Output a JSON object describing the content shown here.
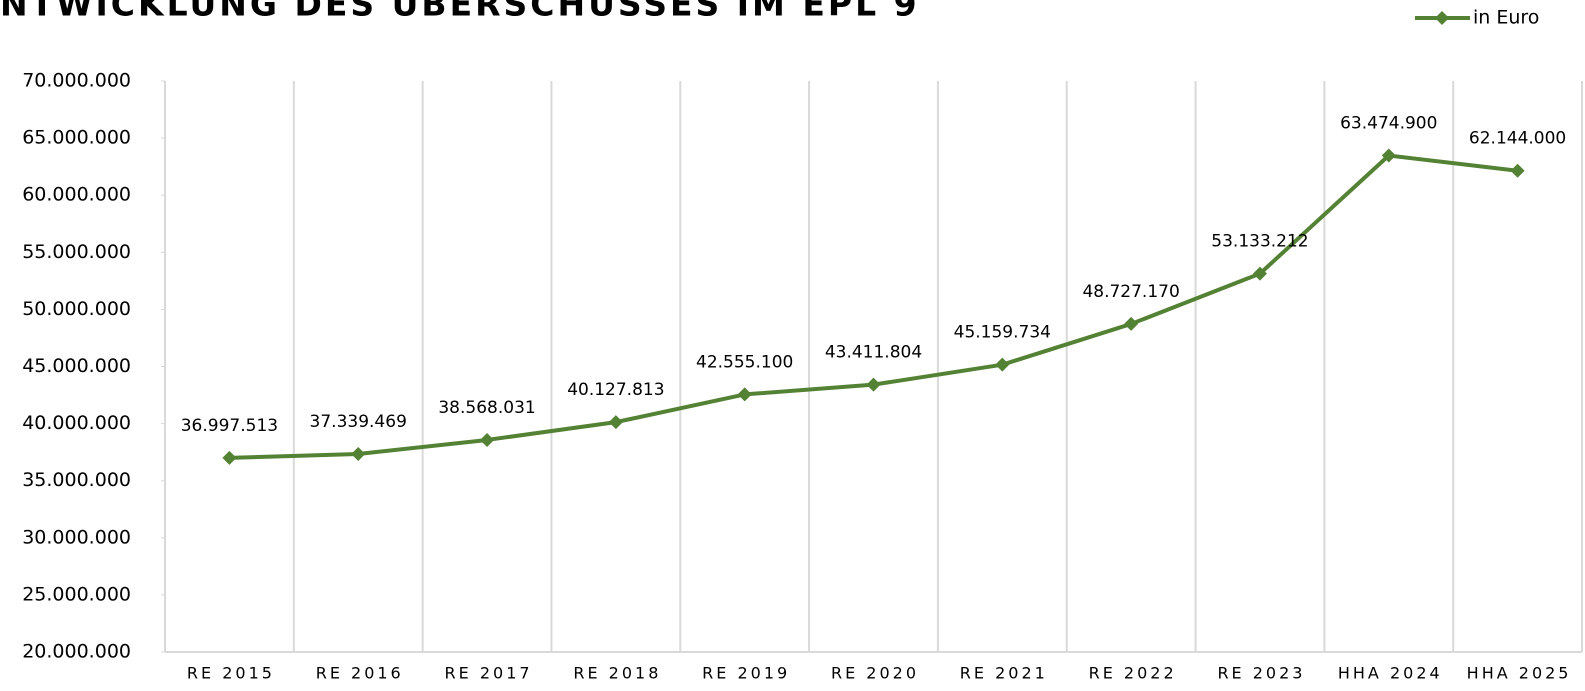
{
  "chart_data": {
    "type": "line",
    "title": "NTWICKLUNG DES ÜBERSCHUSSES IM EPL 9",
    "categories": [
      "RE 2015",
      "RE 2016",
      "RE 2017",
      "RE 2018",
      "RE 2019",
      "RE 2020",
      "RE 2021",
      "RE 2022",
      "RE 2023",
      "HHA 2024",
      "HHA 2025"
    ],
    "series": [
      {
        "name": "in Euro",
        "color": "#548235",
        "values": [
          36997513,
          37339469,
          38568031,
          40127813,
          42555100,
          43411804,
          45159734,
          48727170,
          53133212,
          63474900,
          62144000
        ],
        "value_labels": [
          "36.997.513",
          "37.339.469",
          "38.568.031",
          "40.127.813",
          "42.555.100",
          "43.411.804",
          "45.159.734",
          "48.727.170",
          "53.133.212",
          "63.474.900",
          "62.144.000"
        ]
      }
    ],
    "ylim": [
      20000000,
      70000000
    ],
    "yticks": [
      {
        "value": 20000000,
        "label": "20.000.000"
      },
      {
        "value": 25000000,
        "label": "25.000.000"
      },
      {
        "value": 30000000,
        "label": "30.000.000"
      },
      {
        "value": 35000000,
        "label": "35.000.000"
      },
      {
        "value": 40000000,
        "label": "40.000.000"
      },
      {
        "value": 45000000,
        "label": "45.000.000"
      },
      {
        "value": 50000000,
        "label": "50.000.000"
      },
      {
        "value": 55000000,
        "label": "55.000.000"
      },
      {
        "value": 60000000,
        "label": "60.000.000"
      },
      {
        "value": 65000000,
        "label": "65.000.000"
      },
      {
        "value": 70000000,
        "label": "70.000.000"
      }
    ],
    "legend": "top-right"
  }
}
